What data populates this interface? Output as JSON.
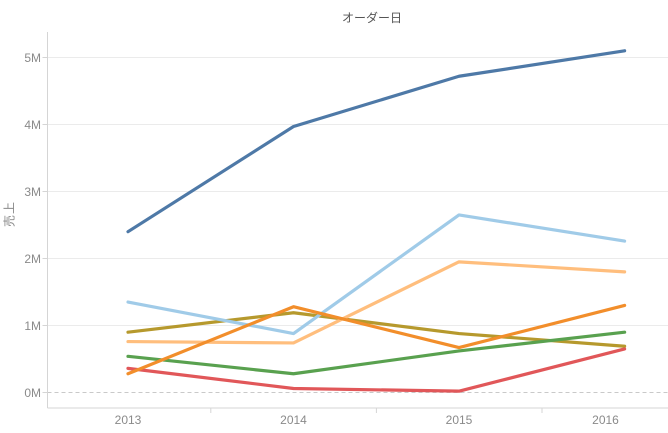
{
  "chart_data": {
    "type": "line",
    "title": "オーダー日",
    "ylabel": "売上",
    "xlabel": "",
    "categories": [
      "2013",
      "2014",
      "2015",
      "2016"
    ],
    "y_tick_labels": [
      "0M",
      "1M",
      "2M",
      "3M",
      "4M",
      "5M"
    ],
    "y_tick_values_millions": [
      0,
      1,
      2,
      3,
      4,
      5
    ],
    "ylim_millions": [
      0,
      5.4
    ],
    "grid": "horizontal-only",
    "zero_line_style": "dashed",
    "legend_position": "none",
    "series": [
      {
        "name": "olive",
        "color": "#b6992d",
        "values_millions": [
          0.9,
          1.19,
          0.88,
          0.69
        ]
      },
      {
        "name": "green",
        "color": "#59a14f",
        "values_millions": [
          0.54,
          0.28,
          0.62,
          0.9
        ]
      },
      {
        "name": "red",
        "color": "#e15759",
        "values_millions": [
          0.36,
          0.06,
          0.02,
          0.65
        ]
      },
      {
        "name": "light-blue",
        "color": "#a0cbe8",
        "values_millions": [
          1.35,
          0.88,
          2.65,
          2.26
        ]
      },
      {
        "name": "light-orange",
        "color": "#ffbe7d",
        "values_millions": [
          0.76,
          0.74,
          1.95,
          1.8
        ]
      },
      {
        "name": "orange",
        "color": "#f28e2b",
        "values_millions": [
          0.28,
          1.28,
          0.67,
          1.3
        ]
      },
      {
        "name": "dark-blue",
        "color": "#4e79a7",
        "values_millions": [
          2.4,
          3.97,
          4.72,
          5.1
        ]
      }
    ]
  },
  "colors": {
    "background": "#ffffff",
    "gridline": "#ebebeb",
    "axis_line": "#d5d5d5",
    "zero_line": "#c9c9c9",
    "tick_text": "#8a8a8a",
    "title_text": "#555555"
  }
}
